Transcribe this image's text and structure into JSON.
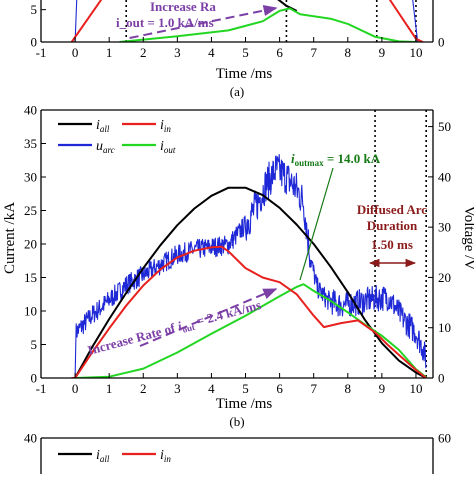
{
  "chart_data": [
    {
      "panel": "a",
      "type": "line",
      "caption": "(a)",
      "xlabel": "Time /ms",
      "xlim": [
        -1,
        10.5
      ],
      "x_ticks": [
        "-1",
        "0",
        "1",
        "2",
        "3",
        "4",
        "5",
        "6",
        "7",
        "8",
        "9",
        "10"
      ],
      "y_left_ticks": [
        "0",
        "5"
      ],
      "y_right_ticks": [
        "0"
      ],
      "annotations": [
        "Increase Ra",
        "i_out = 1.0 kA/ms"
      ],
      "colors": {
        "i_in": "#e8211f",
        "u_arc": "#1f28d6",
        "i_out": "#22d622",
        "i_all": "#000000",
        "arrow": "#7b3fa6",
        "marker": "#000000"
      },
      "series": [
        {
          "name": "i_in",
          "points": [
            [
              -0.1,
              0
            ],
            [
              0.8,
              6.8
            ],
            [
              9.2,
              6.8
            ],
            [
              10,
              0.5
            ],
            [
              10.2,
              0
            ]
          ]
        },
        {
          "name": "u_arc",
          "points": [
            [
              0,
              0
            ],
            [
              0.05,
              6.8
            ],
            [
              9.9,
              6.8
            ],
            [
              10.05,
              0
            ]
          ]
        },
        {
          "name": "i_out",
          "points": [
            [
              1.3,
              0
            ],
            [
              3,
              0.9
            ],
            [
              4.5,
              1.8
            ],
            [
              5.5,
              3.2
            ],
            [
              6.0,
              4.8
            ],
            [
              6.3,
              5.2
            ],
            [
              6.6,
              4.3
            ],
            [
              7.5,
              3.6
            ],
            [
              8,
              2.8
            ],
            [
              8.8,
              0.8
            ],
            [
              9.5,
              0.1
            ],
            [
              10,
              0
            ]
          ]
        },
        {
          "name": "i_all",
          "points": [
            [
              5.9,
              6.8
            ],
            [
              6.2,
              5.6
            ],
            [
              6.5,
              4.8
            ]
          ]
        }
      ],
      "markers_x": [
        1.5,
        6.2,
        8.85,
        10
      ]
    },
    {
      "panel": "b",
      "type": "line",
      "caption": "(b)",
      "xlabel": "Time /ms",
      "ylabel_left": "Current /kA",
      "ylabel_right": "Voltage /V",
      "xlim": [
        -1,
        10.5
      ],
      "ylim_left": [
        0,
        40
      ],
      "ylim_right": [
        0,
        53.3
      ],
      "x_ticks": [
        "-1",
        "0",
        "1",
        "2",
        "3",
        "4",
        "5",
        "6",
        "7",
        "8",
        "9",
        "10"
      ],
      "y_left_ticks": [
        "0",
        "5",
        "10",
        "15",
        "20",
        "25",
        "30",
        "35",
        "40"
      ],
      "y_right_ticks": [
        "0",
        "10",
        "20",
        "30",
        "40",
        "50"
      ],
      "legend": [
        {
          "name": "i",
          "sub": "all",
          "color": "#000000"
        },
        {
          "name": "i",
          "sub": "in",
          "color": "#e8211f"
        },
        {
          "name": "u",
          "sub": "arc",
          "color": "#1f28d6"
        },
        {
          "name": "i",
          "sub": "out",
          "color": "#22d622"
        }
      ],
      "annotations": {
        "peak": "i_outmax = 14.0 kA",
        "peak_main": "i",
        "peak_sub": "outmax",
        "peak_rest": " = 14.0 kA",
        "rate_pre": "Increase Rate of ",
        "rate_main": "i",
        "rate_sub": "out",
        "rate_post": " = 2.4 kA/ms",
        "diffused_line1": "Diffused Arc",
        "diffused_line2": "Duration",
        "diffused_value": "1.50 ms"
      },
      "colors": {
        "peak": "#167a16",
        "rate": "#7b3fa6",
        "diffused": "#8b1a1a"
      },
      "markers_x": [
        8.8,
        10.3
      ],
      "series": [
        {
          "name": "i_all",
          "axis": "left",
          "points": [
            [
              -0.1,
              0
            ],
            [
              0,
              0
            ],
            [
              0.5,
              4.6
            ],
            [
              1,
              8.8
            ],
            [
              1.5,
              12.7
            ],
            [
              2,
              16.4
            ],
            [
              2.5,
              19.8
            ],
            [
              3,
              22.8
            ],
            [
              3.5,
              25.3
            ],
            [
              4,
              27.2
            ],
            [
              4.5,
              28.4
            ],
            [
              5,
              28.4
            ],
            [
              5.5,
              27.3
            ],
            [
              6,
              25.4
            ],
            [
              6.5,
              22.9
            ],
            [
              7,
              20
            ],
            [
              7.5,
              16.6
            ],
            [
              8,
              12.8
            ],
            [
              8.5,
              8.7
            ],
            [
              9,
              5.2
            ],
            [
              9.5,
              2.6
            ],
            [
              10,
              0.8
            ],
            [
              10.3,
              0
            ]
          ]
        },
        {
          "name": "i_in",
          "axis": "left",
          "points": [
            [
              -0.1,
              0
            ],
            [
              0,
              0
            ],
            [
              0.5,
              3.8
            ],
            [
              1,
              7.4
            ],
            [
              1.5,
              10.8
            ],
            [
              2,
              13.8
            ],
            [
              2.5,
              16.2
            ],
            [
              3,
              18
            ],
            [
              3.5,
              19
            ],
            [
              4,
              19.5
            ],
            [
              4.3,
              19.6
            ],
            [
              4.5,
              18.9
            ],
            [
              5,
              16.4
            ],
            [
              5.5,
              15
            ],
            [
              6,
              14.3
            ],
            [
              6.5,
              12.5
            ],
            [
              7,
              9.3
            ],
            [
              7.3,
              7.6
            ],
            [
              7.8,
              8.2
            ],
            [
              8.3,
              8.6
            ],
            [
              8.8,
              6.8
            ],
            [
              9.2,
              4.8
            ],
            [
              9.6,
              3
            ],
            [
              10,
              1.2
            ],
            [
              10.3,
              0
            ]
          ]
        },
        {
          "name": "i_out",
          "axis": "left",
          "points": [
            [
              -0.1,
              0
            ],
            [
              0,
              0
            ],
            [
              1,
              0.2
            ],
            [
              2,
              1.4
            ],
            [
              3,
              3.8
            ],
            [
              4,
              6.6
            ],
            [
              5,
              9.3
            ],
            [
              6,
              12.2
            ],
            [
              6.5,
              13.6
            ],
            [
              6.7,
              14
            ],
            [
              7,
              13
            ],
            [
              7.5,
              11.5
            ],
            [
              8,
              9.8
            ],
            [
              8.5,
              8
            ],
            [
              9,
              6.3
            ],
            [
              9.5,
              4.2
            ],
            [
              10,
              1.3
            ],
            [
              10.3,
              0.1
            ]
          ]
        },
        {
          "name": "u_arc",
          "axis": "right",
          "points": [
            [
              0,
              0
            ],
            [
              0.02,
              9
            ],
            [
              0.5,
              12.5
            ],
            [
              1,
              15.5
            ],
            [
              1.5,
              18.5
            ],
            [
              2,
              20.5
            ],
            [
              2.5,
              22.5
            ],
            [
              3,
              24.5
            ],
            [
              3.5,
              25.5
            ],
            [
              4,
              26
            ],
            [
              4.5,
              26.5
            ],
            [
              5,
              30.5
            ],
            [
              5.3,
              34
            ],
            [
              5.6,
              38.5
            ],
            [
              5.9,
              41.5
            ],
            [
              6.2,
              40
            ],
            [
              6.5,
              37.5
            ],
            [
              6.7,
              35
            ],
            [
              6.9,
              24
            ],
            [
              7.1,
              18
            ],
            [
              7.4,
              15.5
            ],
            [
              7.8,
              14.5
            ],
            [
              8.3,
              15
            ],
            [
              8.8,
              15.8
            ],
            [
              9.2,
              16
            ],
            [
              9.6,
              12
            ],
            [
              10,
              9
            ],
            [
              10.2,
              6
            ],
            [
              10.3,
              3.5
            ]
          ]
        }
      ]
    },
    {
      "panel": "c",
      "type": "line",
      "ylim_left": [
        0,
        40
      ],
      "ylim_right": [
        0,
        60
      ],
      "y_left_ticks": [
        "35",
        "40"
      ],
      "y_right_ticks": [
        "60"
      ],
      "legend": [
        {
          "name": "i",
          "sub": "all",
          "color": "#000000"
        },
        {
          "name": "i",
          "sub": "in",
          "color": "#e8211f"
        }
      ]
    }
  ]
}
